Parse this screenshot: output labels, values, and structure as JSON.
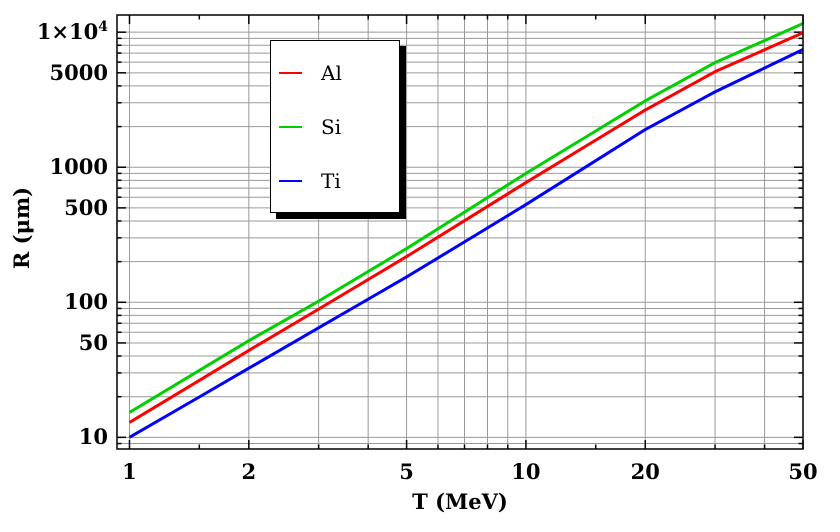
{
  "chart_data": {
    "type": "line",
    "title": "",
    "xlabel": "T (MeV)",
    "ylabel": "R (μm)",
    "x_scale": "log",
    "y_scale": "log",
    "xlim": [
      0.93,
      50
    ],
    "ylim": [
      8.2,
      13400
    ],
    "grid": true,
    "frame": true,
    "legend_position": "top-left-inside",
    "x_ticks": [
      {
        "v": 1,
        "label": "1"
      },
      {
        "v": 2,
        "label": "2"
      },
      {
        "v": 5,
        "label": "5"
      },
      {
        "v": 10,
        "label": "10"
      },
      {
        "v": 20,
        "label": "20"
      },
      {
        "v": 50,
        "label": "50"
      }
    ],
    "x_minor_ticks": [
      1.5,
      3,
      4,
      6,
      7,
      8,
      9,
      15,
      30,
      40
    ],
    "y_ticks": [
      {
        "v": 10,
        "label": "10"
      },
      {
        "v": 50,
        "label": "50"
      },
      {
        "v": 100,
        "label": "100"
      },
      {
        "v": 500,
        "label": "500"
      },
      {
        "v": 1000,
        "label": "1000"
      },
      {
        "v": 5000,
        "label": "5000"
      },
      {
        "v": 10000,
        "label": "1×10^4"
      }
    ],
    "x": [
      1,
      1.5,
      2,
      3,
      5,
      7,
      10,
      15,
      20,
      30,
      40,
      50
    ],
    "series": [
      {
        "name": "Al",
        "color": "#ff0000",
        "values": [
          12.9,
          26.4,
          44,
          89,
          218,
          402,
          770,
          1587,
          2650,
          5100,
          7408,
          9900
        ]
      },
      {
        "name": "Si",
        "color": "#00d000",
        "values": [
          15.3,
          31.3,
          52,
          102,
          250,
          465,
          900,
          1855,
          3100,
          5950,
          8665,
          11600
        ]
      },
      {
        "name": "Ti",
        "color": "#0000ff",
        "values": [
          10,
          19.9,
          32.5,
          64.7,
          154,
          280,
          529,
          1118,
          1900,
          3615,
          5426,
          7440
        ]
      }
    ]
  },
  "colors": {
    "grid": "#999999",
    "frame": "#000000",
    "background": "#ffffff",
    "legend_shadow": "#000000",
    "text": "#000000"
  }
}
